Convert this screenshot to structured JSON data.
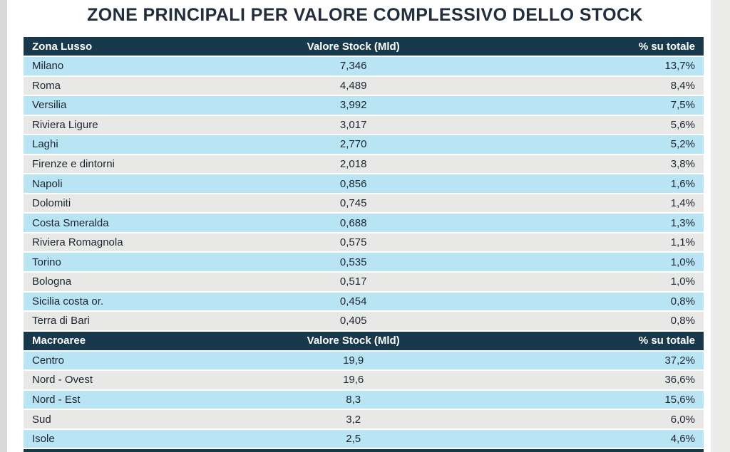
{
  "title": "ZONE PRINCIPALI PER VALORE COMPLESSIVO DELLO STOCK",
  "colors": {
    "header_bg": "#17394b",
    "row_blue": "#b9e4f4",
    "row_gray": "#e8e9e6",
    "title_text": "#222e3d",
    "row_text": "#1c2532"
  },
  "chart_data": [
    {
      "type": "table",
      "title": "Zona Lusso",
      "columns": [
        "Zona Lusso",
        "Valore Stock (Mld)",
        "% su totale"
      ],
      "rows": [
        [
          "Milano",
          "7,346",
          "13,7%"
        ],
        [
          "Roma",
          "4,489",
          "8,4%"
        ],
        [
          "Versilia",
          "3,992",
          "7,5%"
        ],
        [
          "Riviera Ligure",
          "3,017",
          "5,6%"
        ],
        [
          "Laghi",
          "2,770",
          "5,2%"
        ],
        [
          "Firenze e dintorni",
          "2,018",
          "3,8%"
        ],
        [
          "Napoli",
          "0,856",
          "1,6%"
        ],
        [
          "Dolomiti",
          "0,745",
          "1,4%"
        ],
        [
          "Costa Smeralda",
          "0,688",
          "1,3%"
        ],
        [
          "Riviera Romagnola",
          "0,575",
          "1,1%"
        ],
        [
          "Torino",
          "0,535",
          "1,0%"
        ],
        [
          "Bologna",
          "0,517",
          "1,0%"
        ],
        [
          "Sicilia costa or.",
          "0,454",
          "0,8%"
        ],
        [
          "Terra di Bari",
          "0,405",
          "0,8%"
        ]
      ]
    },
    {
      "type": "table",
      "title": "Macroaree",
      "columns": [
        "Macroaree",
        "Valore Stock (Mld)",
        "% su totale"
      ],
      "rows": [
        [
          "Centro",
          "19,9",
          "37,2%"
        ],
        [
          "Nord - Ovest",
          "19,6",
          "36,6%"
        ],
        [
          "Nord - Est",
          "8,3",
          "15,6%"
        ],
        [
          "Sud",
          "3,2",
          "6,0%"
        ],
        [
          "Isole",
          "2,5",
          "4,6%"
        ]
      ]
    }
  ]
}
